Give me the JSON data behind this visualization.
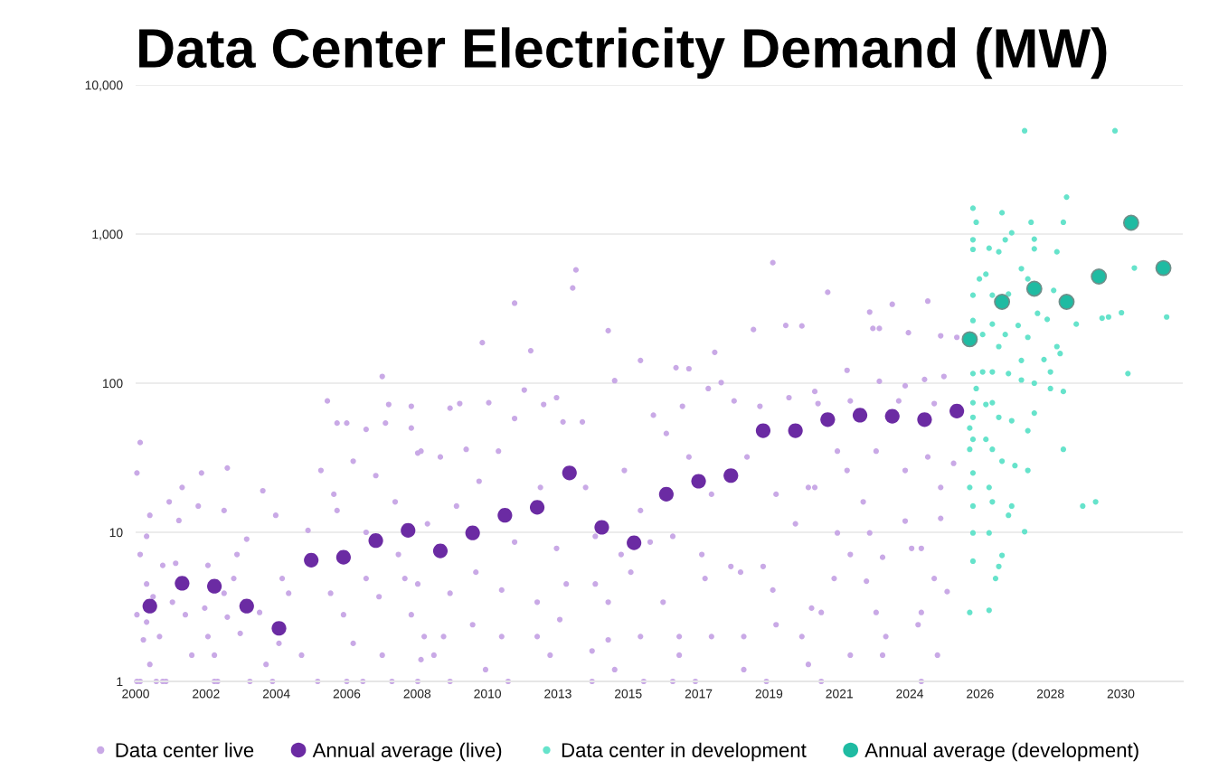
{
  "chart_data": {
    "type": "scatter",
    "title": "Data Center Electricity Demand (MW)",
    "log": true,
    "grid": "y",
    "legend": "bottom",
    "marker": "circle",
    "xlim": [
      1999.56,
      2032
    ],
    "xticks": [
      {
        "value": 1999.56,
        "label": "2000"
      },
      {
        "value": 2001.74,
        "label": "2002"
      },
      {
        "value": 2003.92,
        "label": "2004"
      },
      {
        "value": 2006.1,
        "label": "2006"
      },
      {
        "value": 2008.28,
        "label": "2008"
      },
      {
        "value": 2010.46,
        "label": "2010"
      },
      {
        "value": 2012.64,
        "label": "2013"
      },
      {
        "value": 2014.82,
        "label": "2015"
      },
      2017,
      {
        "value": 2019.18,
        "label": "2019"
      },
      {
        "value": 2021.36,
        "label": "2021"
      },
      {
        "value": 2023.54,
        "label": "2024"
      },
      {
        "value": 2025.72,
        "label": "2026"
      },
      {
        "value": 2027.9,
        "label": "2028"
      },
      {
        "value": 2030.08,
        "label": "2030"
      }
    ],
    "ylim": [
      1,
      10000
    ],
    "yticks": [
      1,
      10,
      100,
      {
        "value": 1000,
        "label": "1,000"
      },
      {
        "value": 10000,
        "label": "10,000"
      }
    ],
    "series": [
      {
        "name": "Data center live",
        "color": "#c9a9e6",
        "x": [
          1999.7,
          1999.6,
          1999.7,
          1999.9,
          1999.9,
          1999.6,
          1999.8,
          1999.9,
          2000.1,
          1999.6,
          1999.7,
          2000.2,
          2000.4,
          2000.5,
          2000.0,
          2000.3,
          2000.0,
          2000.4,
          2000.6,
          2000.9,
          2001.0,
          2000.8,
          2000.7,
          2001.1,
          2001.3,
          2001.5,
          2001.6,
          2001.8,
          2001.7,
          2002.0,
          2002.1,
          2002.4,
          2002.3,
          2002.3,
          2001.8,
          2002.0,
          2002.7,
          2002.6,
          2002.4,
          2002.8,
          2003.0,
          2003.1,
          2003.5,
          2003.4,
          2003.8,
          2003.9,
          2004.1,
          2004.0,
          2003.6,
          2004.3,
          2004.7,
          2004.9,
          2005.3,
          2005.2,
          2005.7,
          2005.6,
          2005.8,
          2006.1,
          2005.8,
          2006.0,
          2006.1,
          2006.3,
          2006.6,
          2006.7,
          2006.7,
          2006.3,
          2006.7,
          2007.0,
          2007.3,
          2007.1,
          2007.5,
          2007.6,
          2007.7,
          2008.1,
          2007.9,
          2008.3,
          2008.4,
          2008.1,
          2007.2,
          2005.5,
          2007.2,
          2007.4,
          2008.1,
          2011.3,
          2013.1,
          2013.2,
          2019.3,
          2010.3,
          2011.8,
          2014.2,
          2015.2,
          2016.3,
          2016.7,
          2017.5,
          2017.7,
          2018.7,
          2019.7,
          2020.2,
          2021.0,
          2009.3,
          2009.6,
          2010.5,
          2011.3,
          2011.6,
          2012.6,
          2012.2,
          2012.8,
          2013.4,
          2014.4,
          2015.6,
          2016.5,
          2017.3,
          2018.1,
          2018.9,
          2019.8,
          2020.6,
          2008.4,
          2009.0,
          2009.8,
          2010.8,
          2012.1,
          2013.5,
          2014.7,
          2015.2,
          2016.0,
          2016.7,
          2017.4,
          2018.5,
          2019.4,
          2020.4,
          2008.6,
          2009.5,
          2010.2,
          2011.3,
          2012.6,
          2013.8,
          2014.6,
          2015.5,
          2016.2,
          2017.1,
          2018.0,
          2019.0,
          2020.0,
          2008.3,
          2009.3,
          2010.1,
          2010.9,
          2012.0,
          2012.9,
          2013.8,
          2014.2,
          2014.9,
          2015.9,
          2017.2,
          2018.3,
          2019.3,
          2020.5,
          2008.5,
          2009.1,
          2010.0,
          2010.9,
          2012.0,
          2012.7,
          2013.7,
          2014.2,
          2015.2,
          2016.4,
          2017.4,
          2018.4,
          2019.4,
          2020.2,
          2008.8,
          2010.4,
          2012.4,
          2014.4,
          2016.4,
          2018.4,
          2020.4,
          2008.3,
          2009.3,
          2011.1,
          2013.7,
          2015.3,
          2016.2,
          2016.9,
          2019.1,
          2022.3,
          2022.4,
          2022.6,
          2023.0,
          2024.1,
          2023.5,
          2024.5,
          2025.0,
          2021.6,
          2022.6,
          2023.4,
          2024.0,
          2024.6,
          2020.7,
          2021.7,
          2023.2,
          2024.3,
          2021.3,
          2022.5,
          2024.1,
          2024.9,
          2021.6,
          2023.4,
          2024.5,
          2020.6,
          2022.1,
          2021.3,
          2022.3,
          2023.4,
          2024.5,
          2021.7,
          2022.7,
          2023.6,
          2023.9,
          2021.2,
          2022.2,
          2024.3,
          2024.7,
          2020.8,
          2022.5,
          2023.9,
          2022.8,
          2023.8,
          2021.7,
          2022.7,
          2024.4,
          2023.9,
          2020.8
        ],
        "values": [
          40,
          25,
          7.1,
          9.4,
          4.5,
          2.8,
          1.9,
          2.5,
          3.7,
          1,
          1,
          1,
          1,
          1,
          1.3,
          2,
          13,
          6,
          16,
          12,
          20,
          6.2,
          3.4,
          2.8,
          1.5,
          15,
          25,
          6,
          3.1,
          1,
          1,
          27,
          14,
          3.9,
          2,
          1.5,
          7.1,
          4.9,
          2.7,
          2.1,
          9,
          1,
          19,
          2.9,
          1,
          13,
          4.9,
          1.8,
          1.3,
          3.9,
          1.5,
          10.3,
          26,
          1,
          18,
          3.9,
          54,
          54,
          14,
          2.8,
          1,
          30,
          1,
          10,
          4.9,
          1.8,
          49,
          24,
          54,
          3.7,
          1,
          16,
          7.1,
          50,
          4.9,
          34,
          1.4,
          2.8,
          1.5,
          76,
          111,
          72,
          70,
          344,
          435,
          575,
          643,
          187,
          165,
          225,
          142,
          127,
          125,
          161,
          101,
          229,
          244,
          242,
          407,
          68,
          73,
          74,
          58,
          90,
          80,
          72,
          55,
          55,
          104,
          61,
          70,
          92,
          76,
          70,
          80,
          88,
          35,
          32,
          36,
          35,
          20,
          20,
          26,
          14,
          46,
          32,
          18,
          32,
          18,
          20,
          11.4,
          15,
          22,
          8.6,
          7.8,
          9.4,
          7.1,
          8.6,
          9.4,
          7.1,
          5.9,
          5.9,
          11.4,
          4.5,
          3.9,
          5.4,
          4.1,
          3.4,
          4.5,
          4.5,
          3.4,
          5.4,
          3.4,
          4.9,
          5.4,
          4.1,
          3.1,
          2,
          2,
          2.4,
          2,
          2,
          2.6,
          1.6,
          1.9,
          2,
          2,
          2,
          2,
          2.4,
          2,
          1.5,
          1.2,
          1.5,
          1.2,
          1.5,
          1.2,
          1.3,
          1,
          1,
          1,
          1,
          1,
          1,
          1,
          1,
          300,
          233,
          233,
          338,
          355,
          218,
          208,
          203,
          122,
          103,
          96,
          106,
          111,
          73,
          76,
          76,
          73,
          35,
          35,
          32,
          29,
          26,
          26,
          20,
          20,
          16,
          9.9,
          9.9,
          11.9,
          12.4,
          7.1,
          6.8,
          7.8,
          7.8,
          4.9,
          4.7,
          4.9,
          4,
          2.9,
          2.9,
          2.9,
          2,
          2.4,
          1.5,
          1.5,
          1.5,
          1,
          1
        ]
      },
      {
        "name": "Annual average (live)",
        "color": "#6b2ba3",
        "x": [
          2000,
          2001,
          2002,
          2003,
          2004,
          2005,
          2006,
          2007,
          2008,
          2009,
          2010,
          2011,
          2012,
          2013,
          2014,
          2015,
          2016,
          2017,
          2018,
          2019,
          2020,
          2021,
          2022,
          2023,
          2024,
          2025
        ],
        "values": [
          3.2,
          4.55,
          4.35,
          3.2,
          2.27,
          6.5,
          6.8,
          8.8,
          10.3,
          7.5,
          9.9,
          13,
          14.7,
          25,
          10.8,
          8.5,
          18,
          22,
          24,
          48,
          48,
          57,
          61,
          60,
          57,
          65
        ]
      },
      {
        "name": "Data center in development",
        "color": "#66e3cb",
        "x": [
          2027.1,
          2029.9,
          2028.4,
          2025.5,
          2026.4,
          2025.6,
          2027.3,
          2028.3,
          2026.7,
          2025.5,
          2026.5,
          2027.4,
          2025.5,
          2026.0,
          2026.3,
          2027.4,
          2028.1,
          2030.5,
          2025.7,
          2027.0,
          2025.9,
          2025.5,
          2026.1,
          2026.6,
          2027.2,
          2028.0,
          2029.5,
          2029.7,
          2030.1,
          2031.5,
          2028.7,
          2025.5,
          2025.8,
          2026.1,
          2026.5,
          2026.9,
          2027.2,
          2027.5,
          2027.8,
          2028.1,
          2028.2,
          2027.7,
          2027.0,
          2026.3,
          2025.8,
          2025.5,
          2026.1,
          2026.6,
          2027.0,
          2027.4,
          2027.9,
          2030.3,
          2027.9,
          2028.3,
          2025.5,
          2025.9,
          2026.1,
          2025.5,
          2026.3,
          2026.7,
          2027.4,
          2027.2,
          2025.5,
          2025.9,
          2026.1,
          2028.3,
          2026.4,
          2026.8,
          2027.2,
          2025.5,
          2026.0,
          2025.4,
          2026.1,
          2026.7,
          2026.6,
          2028.9,
          2029.3,
          2025.5,
          2026.0,
          2027.1,
          2025.5,
          2026.4,
          2026.3,
          2026.2,
          2025.4,
          2026.0,
          2025.5,
          2025.6,
          2025.4,
          2025.4
        ],
        "values": [
          4930,
          4930,
          1770,
          1490,
          1390,
          1200,
          1200,
          1200,
          1020,
          916,
          916,
          925,
          789,
          804,
          760,
          796,
          760,
          592,
          500,
          586,
          538,
          389,
          389,
          396,
          500,
          419,
          273,
          278,
          297,
          278,
          249,
          263,
          212,
          249,
          212,
          244,
          203,
          294,
          268,
          176,
          158,
          144,
          142,
          176,
          119,
          116,
          119,
          116,
          105,
          100,
          119,
          116,
          92,
          88,
          74,
          72,
          74,
          59,
          59,
          56,
          63,
          48,
          42,
          42,
          36,
          36,
          30,
          28,
          26,
          25,
          20,
          20,
          16,
          15,
          13,
          15,
          16,
          9.9,
          9.9,
          10.1,
          6.4,
          7,
          5.9,
          4.9,
          2.9,
          3,
          15,
          92,
          50,
          36
        ]
      },
      {
        "name": "Annual average (development)",
        "color": "#1fbba2",
        "x": [
          2025.4,
          2026.4,
          2027.4,
          2028.4,
          2029.4,
          2030.4,
          2031.4
        ],
        "values": [
          197,
          351,
          430,
          351,
          519,
          1190,
          592
        ]
      }
    ]
  }
}
